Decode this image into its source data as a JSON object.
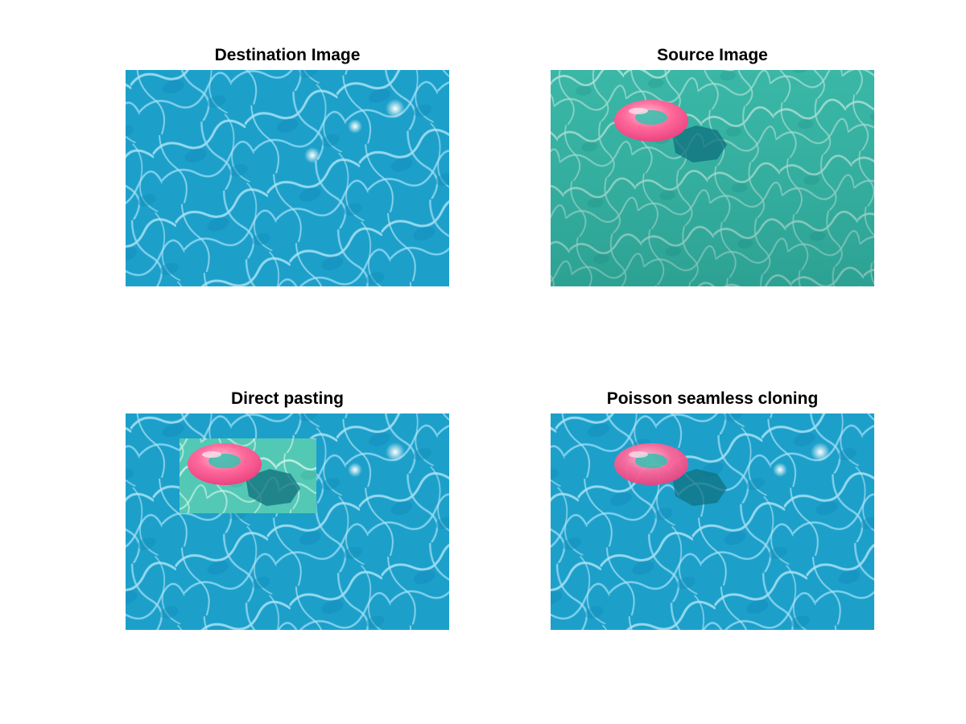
{
  "figure": {
    "panels": [
      {
        "id": "destination",
        "title": "Destination Image",
        "water_color": "#1ea5cf",
        "icon": "pool-water-image"
      },
      {
        "id": "source",
        "title": "Source Image",
        "water_color": "#3fbfae",
        "icon": "pool-water-with-pink-float-image"
      },
      {
        "id": "direct",
        "title": "Direct pasting",
        "water_color": "#1ea5cf",
        "patch_color": "#5fd0b6",
        "icon": "direct-paste-composite-image"
      },
      {
        "id": "poisson",
        "title": "Poisson seamless cloning",
        "water_color": "#1ea5cf",
        "icon": "poisson-blend-composite-image"
      }
    ],
    "colors": {
      "float_pink": "#ff5f96",
      "float_highlight": "#ffb3cc",
      "float_shadow": "#0f6f7e"
    }
  }
}
